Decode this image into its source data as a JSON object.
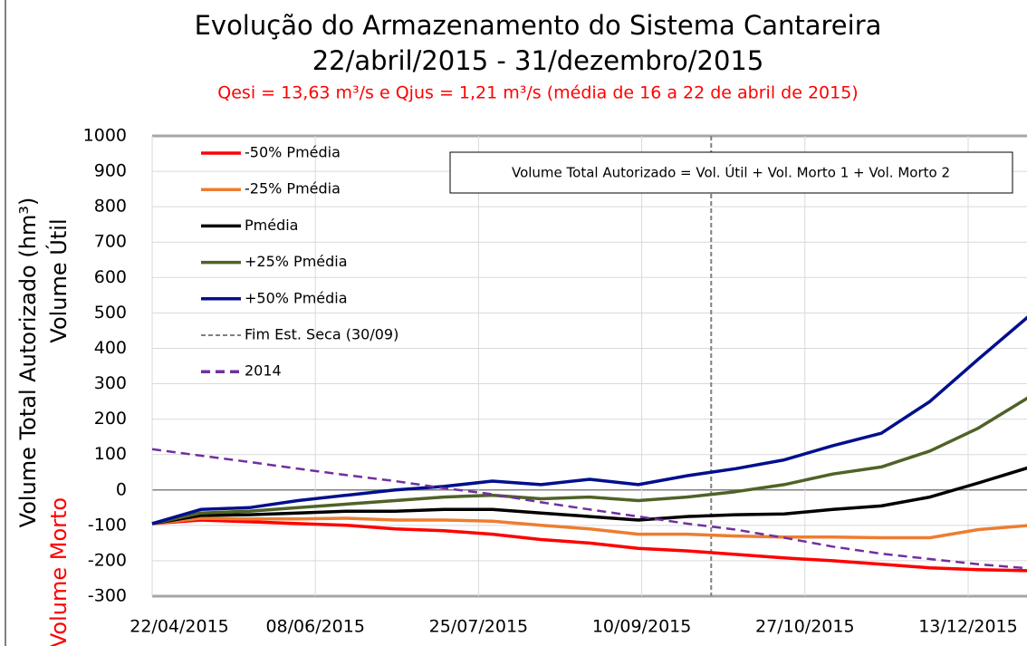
{
  "chart_data": {
    "type": "line",
    "title": "Evolução do Armazenamento do Sistema Cantareira",
    "subtitle": "22/abril/2015 - 31/dezembro/2015",
    "note": "Qesi = 13,63 m³/s e Qjus = 1,21 m³/s (média de 16 a 22 de abril de 2015)",
    "y_label": "Volume Total Autorizado (hm³)",
    "y_label_upper": "Volume Útil",
    "y_label_lower": "Volume Morto",
    "annotation": "Volume Total Autorizado = Vol. Útil + Vol. Morto 1 + Vol. Morto 2",
    "x": [
      "22/04/2015",
      "06/05/2015",
      "20/05/2015",
      "03/06/2015",
      "17/06/2015",
      "01/07/2015",
      "15/07/2015",
      "29/07/2015",
      "12/08/2015",
      "26/08/2015",
      "09/09/2015",
      "23/09/2015",
      "07/10/2015",
      "21/10/2015",
      "04/11/2015",
      "18/11/2015",
      "02/12/2015",
      "16/12/2015",
      "31/12/2015"
    ],
    "xlim": [
      "22/04/2015",
      "31/12/2015"
    ],
    "xticks": [
      "22/04/2015",
      "08/06/2015",
      "25/07/2015",
      "10/09/2015",
      "27/10/2015",
      "13/12/2015"
    ],
    "ylim": [
      -300,
      1000
    ],
    "yticks": [
      -300,
      -200,
      -100,
      0,
      100,
      200,
      300,
      400,
      500,
      600,
      700,
      800,
      900,
      1000
    ],
    "grid": true,
    "legend": "upper left",
    "series": [
      {
        "name": "-50% Pmédia",
        "color": "#ff0000",
        "values": [
          -95,
          -85,
          -90,
          -95,
          -100,
          -110,
          -115,
          -125,
          -140,
          -150,
          -165,
          -172,
          -182,
          -192,
          -200,
          -210,
          -220,
          -225,
          -228
        ]
      },
      {
        "name": "-25% Pmédia",
        "color": "#ed7d31",
        "values": [
          -95,
          -80,
          -82,
          -82,
          -80,
          -85,
          -85,
          -88,
          -100,
          -110,
          -125,
          -125,
          -130,
          -133,
          -133,
          -135,
          -135,
          -112,
          -100
        ]
      },
      {
        "name": "Pmédia",
        "color": "#000000",
        "values": [
          -95,
          -72,
          -70,
          -65,
          -60,
          -60,
          -55,
          -55,
          -65,
          -75,
          -85,
          -75,
          -70,
          -68,
          -55,
          -45,
          -20,
          20,
          65
        ]
      },
      {
        "name": "+25% Pmédia",
        "color": "#4f6228",
        "values": [
          -95,
          -65,
          -60,
          -50,
          -40,
          -30,
          -20,
          -15,
          -25,
          -20,
          -30,
          -20,
          -5,
          15,
          45,
          65,
          110,
          175,
          265
        ]
      },
      {
        "name": "+50% Pmédia",
        "color": "#000f8c",
        "values": [
          -95,
          -55,
          -50,
          -30,
          -15,
          0,
          10,
          25,
          15,
          30,
          15,
          40,
          60,
          85,
          125,
          160,
          250,
          370,
          495
        ]
      },
      {
        "name": "2014",
        "color": "#7030a0",
        "dashed": true,
        "values": [
          115,
          97,
          79,
          60,
          42,
          25,
          5,
          -12,
          -35,
          -55,
          -75,
          -95,
          -112,
          -135,
          -160,
          -180,
          -195,
          -210,
          -222
        ]
      }
    ],
    "vline": {
      "name": "Fim Est. Seca (30/09)",
      "x": "30/09/2015",
      "color": "#808080"
    }
  }
}
